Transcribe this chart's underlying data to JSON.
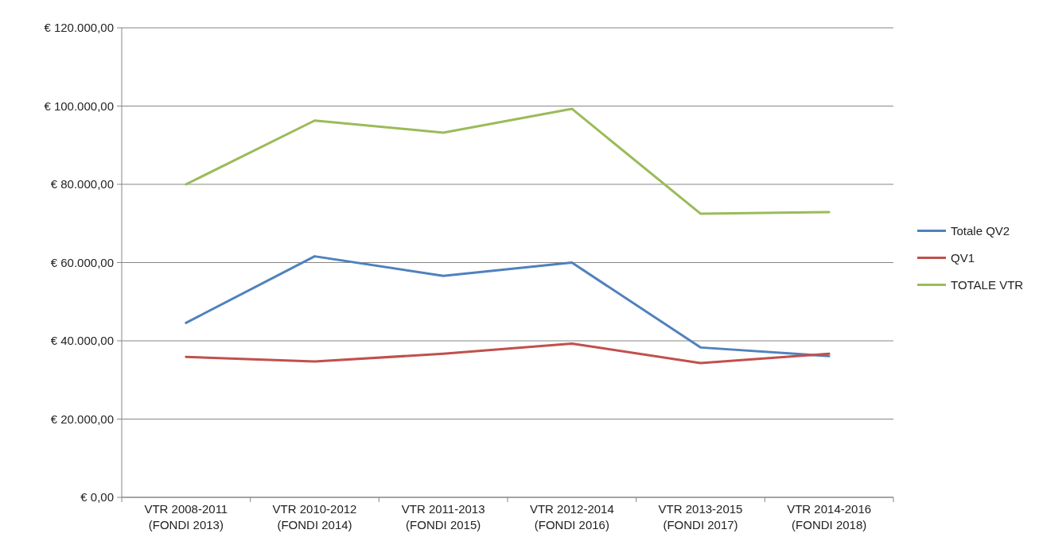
{
  "chart_data": {
    "type": "line",
    "categories": [
      "VTR 2008-2011\n(FONDI 2013)",
      "VTR 2010-2012\n(FONDI 2014)",
      "VTR 2011-2013\n(FONDI 2015)",
      "VTR 2012-2014\n(FONDI 2016)",
      "VTR 2013-2015\n(FONDI 2017)",
      "VTR 2014-2016\n(FONDI 2018)"
    ],
    "series": [
      {
        "name": "Totale QV2",
        "color": "#4f81bd",
        "values": [
          44600,
          61600,
          56600,
          60000,
          38300,
          36100
        ]
      },
      {
        "name": "QV1",
        "color": "#c0504d",
        "values": [
          35900,
          34700,
          36700,
          39300,
          34300,
          36700
        ]
      },
      {
        "name": "TOTALE VTR",
        "color": "#9bbb59",
        "values": [
          80000,
          96300,
          93200,
          99300,
          72500,
          72900
        ]
      }
    ],
    "ylim": [
      0,
      120000
    ],
    "yticks": [
      {
        "value": 0,
        "label": "€ 0,00"
      },
      {
        "value": 20000,
        "label": "€ 20.000,00"
      },
      {
        "value": 40000,
        "label": "€ 40.000,00"
      },
      {
        "value": 60000,
        "label": "€ 60.000,00"
      },
      {
        "value": 80000,
        "label": "€ 80.000,00"
      },
      {
        "value": 100000,
        "label": "€ 100.000,00"
      },
      {
        "value": 120000,
        "label": "€ 120.000,00"
      }
    ],
    "grid": "y",
    "legend": "right",
    "marker": "none",
    "line_style": "solid"
  }
}
